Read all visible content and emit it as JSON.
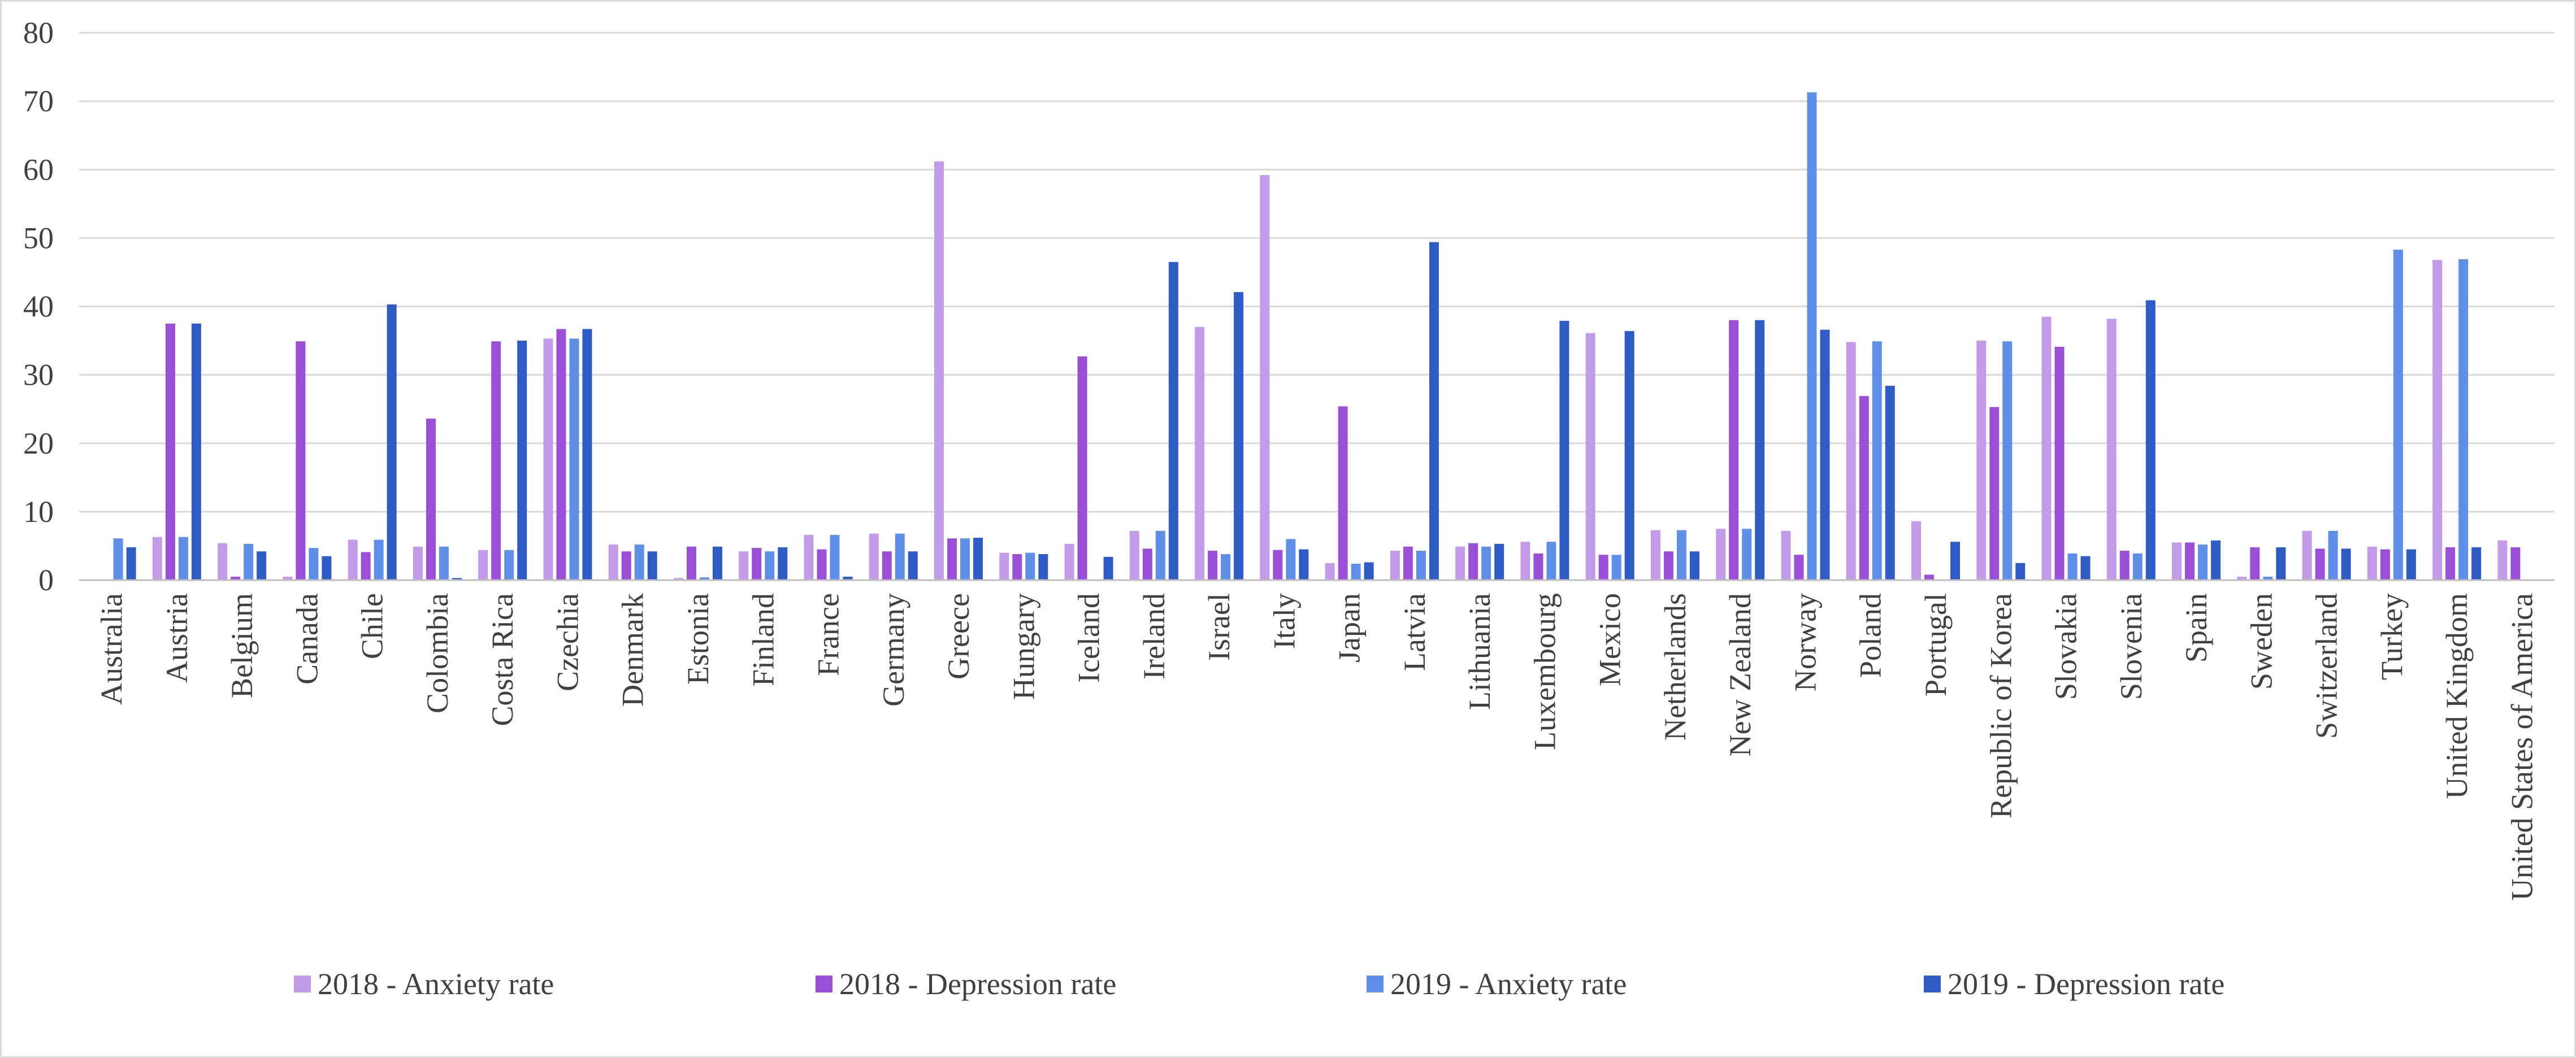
{
  "chart_data": {
    "type": "bar",
    "title": "",
    "xlabel": "",
    "ylabel": "",
    "ylim": [
      0,
      80
    ],
    "yticks": [
      0,
      10,
      20,
      30,
      40,
      50,
      60,
      70,
      80
    ],
    "grid": true,
    "legend_position": "bottom",
    "categories": [
      "Australia",
      "Austria",
      "Belgium",
      "Canada",
      "Chile",
      "Colombia",
      "Costa Rica",
      "Czechia",
      "Denmark",
      "Estonia",
      "Finland",
      "France",
      "Germany",
      "Greece",
      "Hungary",
      "Iceland",
      "Ireland",
      "Israel",
      "Italy",
      "Japan",
      "Latvia",
      "Lithuania",
      "Luxembourg",
      "Mexico",
      "Netherlands",
      "New Zealand",
      "Norway",
      "Poland",
      "Portugal",
      "Republic of Korea",
      "Slovakia",
      "Slovenia",
      "Spain",
      "Sweden",
      "Switzerland",
      "Turkey",
      "United Kingdom",
      "United States of America"
    ],
    "series": [
      {
        "name": "2018 - Anxiety rate",
        "color": "#c49be6",
        "values": [
          0,
          6.3,
          5.4,
          0.5,
          5.9,
          4.9,
          4.4,
          35.3,
          5.2,
          0.3,
          4.2,
          6.6,
          6.8,
          61.2,
          4.0,
          5.3,
          7.2,
          37.0,
          59.2,
          2.5,
          4.3,
          4.9,
          5.6,
          36.1,
          7.3,
          7.5,
          7.2,
          34.8,
          8.6,
          35.0,
          38.5,
          38.2,
          5.5,
          0.5,
          7.2,
          4.9,
          46.8,
          5.8
        ]
      },
      {
        "name": "2018 - Depression rate",
        "color": "#9b4fd6",
        "values": [
          0,
          37.5,
          0.5,
          34.9,
          4.1,
          23.6,
          34.9,
          36.7,
          4.2,
          4.9,
          4.7,
          4.5,
          4.2,
          6.1,
          3.8,
          32.7,
          4.6,
          4.3,
          4.4,
          25.4,
          4.9,
          5.4,
          3.9,
          3.7,
          4.2,
          38.0,
          3.7,
          26.9,
          0.8,
          25.3,
          34.1,
          4.3,
          5.5,
          4.8,
          4.6,
          4.5,
          4.8,
          4.8
        ]
      },
      {
        "name": "2019 - Anxiety rate",
        "color": "#5f8fe6",
        "values": [
          6.1,
          6.3,
          5.3,
          4.7,
          5.9,
          4.9,
          4.4,
          35.3,
          5.2,
          0.4,
          4.2,
          6.6,
          6.8,
          6.1,
          4.0,
          0,
          7.2,
          3.8,
          6.0,
          2.4,
          4.3,
          4.9,
          5.6,
          3.7,
          7.3,
          7.5,
          71.3,
          34.9,
          0,
          34.9,
          3.9,
          3.9,
          5.2,
          0.5,
          7.2,
          48.3,
          46.9,
          0
        ]
      },
      {
        "name": "2019 - Depression rate",
        "color": "#2e5bc4",
        "values": [
          4.8,
          37.5,
          4.2,
          3.5,
          40.3,
          0.3,
          35.0,
          36.7,
          4.2,
          4.9,
          4.8,
          0.5,
          4.2,
          6.2,
          3.8,
          3.4,
          46.5,
          42.1,
          4.5,
          2.6,
          49.4,
          5.3,
          37.9,
          36.4,
          4.2,
          38.0,
          36.6,
          28.4,
          5.6,
          2.5,
          3.5,
          40.9,
          5.8,
          4.8,
          4.6,
          4.5,
          4.8,
          0
        ]
      }
    ]
  }
}
